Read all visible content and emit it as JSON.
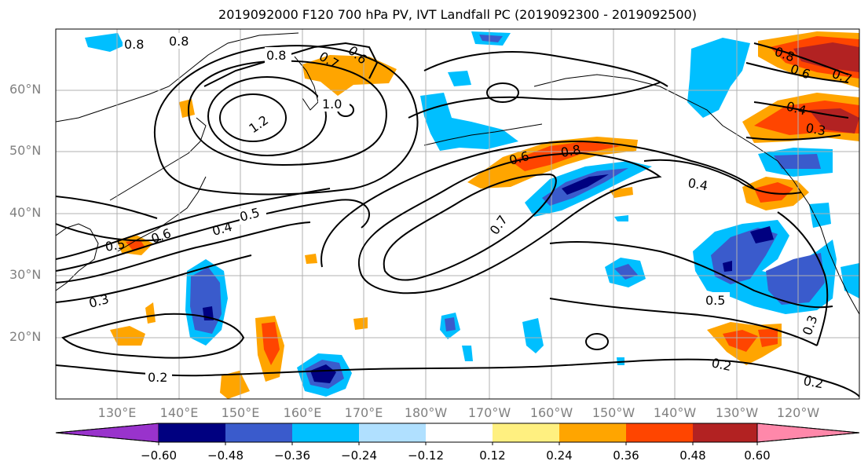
{
  "title": "2019092000 F120 700 hPa PV, IVT Landfall PC (2019092300 - 2019092500)",
  "lat_labels": [
    "60°N",
    "50°N",
    "40°N",
    "30°N",
    "20°N"
  ],
  "lon_labels": [
    "130°E",
    "140°E",
    "150°E",
    "160°E",
    "170°E",
    "180°W",
    "170°W",
    "160°W",
    "150°W",
    "140°W",
    "130°W",
    "120°W"
  ],
  "contour_labels": {
    "c08a": "0.8",
    "c08b": "0.8",
    "c08c": "0.8",
    "c08d": "0.8",
    "c08e": "0.8",
    "c07a": "0.7",
    "c07b": "0.7",
    "c07c": "0.7",
    "c06a": "0.6",
    "c06b": "0.6",
    "c06c": "0.6",
    "c06d": "0.6",
    "c10": "1.0",
    "c12": "1.2",
    "c05a": "0.5",
    "c05b": "0.5",
    "c05c": "0.5",
    "c04a": "0.4",
    "c04b": "0.4",
    "c04c": "0.4",
    "c03a": "0.3",
    "c03b": "0.3",
    "c03c": "0.3",
    "c02a": "0.2",
    "c02b": "0.2",
    "c02c": "0.2"
  },
  "colorbar": {
    "colors": [
      "#9933cc",
      "#000080",
      "#3a5bcc",
      "#00bfff",
      "#b0e0ff",
      "#ffffff",
      "#fff080",
      "#ffa500",
      "#ff4500",
      "#b22222",
      "#ff88aa"
    ],
    "ticks": [
      "−0.60",
      "−0.48",
      "−0.36",
      "−0.24",
      "−0.12",
      "0.12",
      "0.24",
      "0.36",
      "0.48",
      "0.60"
    ]
  },
  "colors": {
    "grid": "#b0b0b0",
    "contour": "#000000",
    "axis_label": "#808080"
  }
}
